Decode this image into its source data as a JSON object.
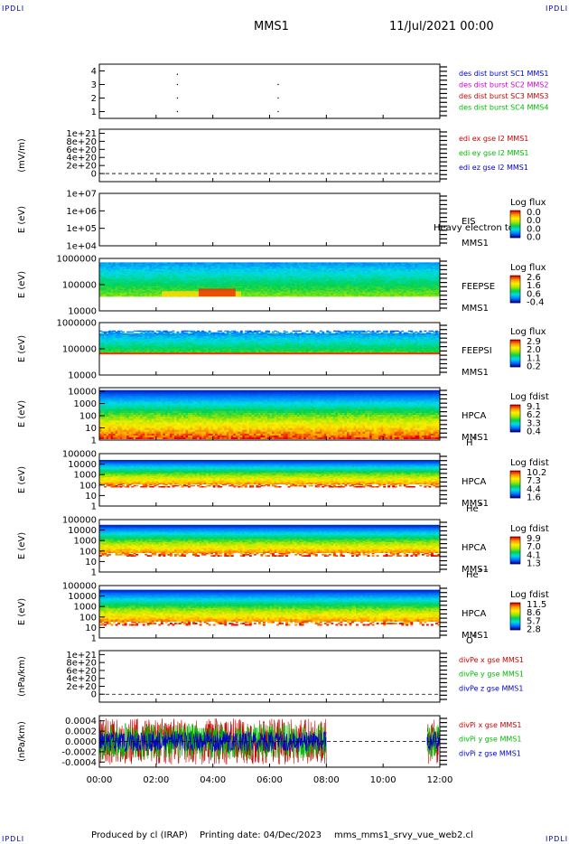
{
  "header": {
    "corner_left_top": "IPDLI",
    "corner_right_top": "IPDLI",
    "corner_left_bottom": "IPDLI",
    "corner_right_bottom": "IPDLI",
    "spacecraft": "MMS1",
    "datetime": "11/Jul/2021 00:00"
  },
  "footer": {
    "produced_by": "Produced by cl (IRAP)",
    "printing_date": "Printing date: 04/Dec/2023",
    "script_name": "mms_mms1_srvy_vue_web2.cl"
  },
  "x_axis": {
    "range_hours": [
      0,
      12
    ],
    "ticks": [
      {
        "hour": 0,
        "label": "00:00"
      },
      {
        "hour": 2,
        "label": "02:00"
      },
      {
        "hour": 4,
        "label": "04:00"
      },
      {
        "hour": 6,
        "label": "06:00"
      },
      {
        "hour": 8,
        "label": "08:00"
      },
      {
        "hour": 10,
        "label": "10:00"
      },
      {
        "hour": 12,
        "label": "12:00"
      }
    ]
  },
  "chart_data": [
    {
      "type": "scatter",
      "ylabel": "",
      "ylim": [
        0.5,
        4.5
      ],
      "y_ticks": [
        "1",
        "2",
        "3",
        "4"
      ],
      "y_tick_values": [
        1,
        2,
        3,
        4
      ],
      "legend": [
        {
          "label": "des dist burst SC1 MMS1",
          "color": "#0000cc"
        },
        {
          "label": "des dist burst SC2 MMS2",
          "color": "#cc00cc"
        },
        {
          "label": "des dist burst SC3 MMS3",
          "color": "#cc0000"
        },
        {
          "label": "des dist burst SC4 MMS4",
          "color": "#00bb00"
        }
      ],
      "points": [
        {
          "hour": 2.75,
          "y": 3.75
        },
        {
          "hour": 2.75,
          "y": 3.0
        },
        {
          "hour": 2.75,
          "y": 2.0
        },
        {
          "hour": 2.75,
          "y": 1.0
        },
        {
          "hour": 6.3,
          "y": 3.0
        },
        {
          "hour": 6.3,
          "y": 2.0
        },
        {
          "hour": 6.3,
          "y": 1.0
        }
      ]
    },
    {
      "type": "line",
      "ylabel": "(mV/m)",
      "ylim": [
        -2e+20,
        1.1e+21
      ],
      "y_ticks": [
        "0",
        "2e+20",
        "4e+20",
        "6e+20",
        "8e+20",
        "1e+21"
      ],
      "y_tick_values": [
        0,
        2e+20,
        4e+20,
        6e+20,
        8e+20,
        1e+21
      ],
      "zero_line": true,
      "legend": [
        {
          "label": "edi ex gse l2 MMS1",
          "color": "#cc0000"
        },
        {
          "label": "edi ey gse l2 MMS1",
          "color": "#00bb00"
        },
        {
          "label": "edi ez gse l2 MMS1",
          "color": "#0000cc"
        }
      ]
    },
    {
      "type": "heatmap",
      "ylabel": "E (eV)",
      "log_scale": true,
      "ylim": [
        10000.0,
        10000000.0
      ],
      "y_ticks": [
        "1e+04",
        "1e+05",
        "1e+06",
        "1e+07"
      ],
      "y_tick_exp": [
        4,
        5,
        6,
        7
      ],
      "instrument": [
        "EIS",
        "MMS1"
      ],
      "overlay_text": "Heavy electron to",
      "colorbar_title": "Log flux",
      "colorbar_ticks": [
        "0.0",
        "0.0",
        "0.0",
        "0.0"
      ],
      "data_present": false
    },
    {
      "type": "heatmap",
      "ylabel": "E (eV)",
      "log_scale": true,
      "ylim": [
        10000.0,
        1000000.0
      ],
      "y_ticks": [
        "10000",
        "100000",
        "1000000"
      ],
      "y_tick_exp": [
        4,
        5,
        6
      ],
      "instrument": [
        "FEEPSE",
        "MMS1"
      ],
      "colorbar_title": "Log flux",
      "colorbar_ticks": [
        "2.6",
        "1.6",
        "0.6",
        "-0.4"
      ],
      "data_present": true,
      "data_y_exp": [
        4.55,
        5.85
      ],
      "hot_bands": [
        {
          "hour_start": 2.2,
          "hour_end": 5.0,
          "y_exp": [
            4.55,
            4.75
          ],
          "value": 2.4
        },
        {
          "hour_start": 3.5,
          "hour_end": 4.8,
          "y_exp": [
            4.55,
            4.85
          ],
          "value": 2.6
        }
      ]
    },
    {
      "type": "heatmap",
      "ylabel": "E (eV)",
      "log_scale": true,
      "ylim": [
        10000.0,
        1000000.0
      ],
      "y_ticks": [
        "10000",
        "100000",
        "1000000"
      ],
      "y_tick_exp": [
        4,
        5,
        6
      ],
      "instrument": [
        "FEEPSI",
        "MMS1"
      ],
      "colorbar_title": "Log flux",
      "colorbar_ticks": [
        "2.9",
        "2.0",
        "1.1",
        "0.2"
      ],
      "data_present": true,
      "data_y_exp": [
        4.8,
        5.7
      ]
    },
    {
      "type": "heatmap",
      "ylabel": "E (eV)",
      "log_scale": true,
      "ylim": [
        1,
        20000.0
      ],
      "y_ticks": [
        "1",
        "10",
        "100",
        "1000",
        "10000"
      ],
      "y_tick_exp": [
        0,
        1,
        2,
        3,
        4
      ],
      "instrument": [
        "HPCA",
        "MMS1"
      ],
      "species": "H",
      "species_sup": "+",
      "colorbar_title": "Log fdist",
      "colorbar_ticks": [
        "9.1",
        "6.2",
        "3.3",
        "0.4"
      ],
      "data_present": true,
      "data_y_exp": [
        0.1,
        4.1
      ]
    },
    {
      "type": "heatmap",
      "ylabel": "E (eV)",
      "log_scale": true,
      "ylim": [
        1,
        100000.0
      ],
      "y_ticks": [
        "1",
        "10",
        "100",
        "1000",
        "10000",
        "100000"
      ],
      "y_tick_exp": [
        0,
        1,
        2,
        3,
        4,
        5
      ],
      "instrument": [
        "HPCA",
        "MMS1"
      ],
      "species": "He",
      "species_sup": "+",
      "colorbar_title": "Log fdist",
      "colorbar_ticks": [
        "10.2",
        "7.3",
        "4.4",
        "1.6"
      ],
      "data_present": true,
      "data_y_exp": [
        1.8,
        4.4
      ]
    },
    {
      "type": "heatmap",
      "ylabel": "E (eV)",
      "log_scale": true,
      "ylim": [
        1,
        100000.0
      ],
      "y_ticks": [
        "1",
        "10",
        "100",
        "1000",
        "10000",
        "100000"
      ],
      "y_tick_exp": [
        0,
        1,
        2,
        3,
        4,
        5
      ],
      "instrument": [
        "HPCA",
        "MMS1"
      ],
      "species": "He",
      "species_sup": "++",
      "colorbar_title": "Log fdist",
      "colorbar_ticks": [
        "9.9",
        "7.0",
        "4.1",
        "1.3"
      ],
      "data_present": true,
      "data_y_exp": [
        1.5,
        4.5
      ]
    },
    {
      "type": "heatmap",
      "ylabel": "E (eV)",
      "log_scale": true,
      "ylim": [
        1,
        100000.0
      ],
      "y_ticks": [
        "1",
        "10",
        "100",
        "1000",
        "10000",
        "100000"
      ],
      "y_tick_exp": [
        0,
        1,
        2,
        3,
        4,
        5
      ],
      "instrument": [
        "HPCA",
        "MMS1"
      ],
      "species": "O",
      "species_sup": "+",
      "colorbar_title": "Log fdist",
      "colorbar_ticks": [
        "11.5",
        "8.6",
        "5.7",
        "2.8"
      ],
      "data_present": true,
      "data_y_exp": [
        1.2,
        4.6
      ]
    },
    {
      "type": "line",
      "ylabel": "(nPa/km)",
      "ylim": [
        -2e+20,
        1.1e+21
      ],
      "y_ticks": [
        "0",
        "2e+20",
        "4e+20",
        "6e+20",
        "8e+20",
        "1e+21"
      ],
      "y_tick_values": [
        0,
        2e+20,
        4e+20,
        6e+20,
        8e+20,
        1e+21
      ],
      "zero_line": true,
      "legend": [
        {
          "label": "divPe x gse MMS1",
          "color": "#cc0000"
        },
        {
          "label": "divPe y gse MMS1",
          "color": "#00bb00"
        },
        {
          "label": "divPe z gse MMS1",
          "color": "#0000cc"
        }
      ]
    },
    {
      "type": "line",
      "ylabel": "(nPa/km)",
      "ylim": [
        -0.0005,
        0.0005
      ],
      "y_ticks": [
        "-0.0004",
        "-0.0002",
        "0.0000",
        "0.0002",
        "0.0004"
      ],
      "y_tick_values": [
        -0.0004,
        -0.0002,
        0,
        0.0002,
        0.0004
      ],
      "zero_line": true,
      "legend": [
        {
          "label": "divPi x gse MMS1",
          "color": "#cc0000"
        },
        {
          "label": "divPi y gse MMS1",
          "color": "#00bb00"
        },
        {
          "label": "divPi z gse MMS1",
          "color": "#0000cc"
        }
      ],
      "data_segments_hours": [
        [
          0.0,
          8.0
        ],
        [
          11.55,
          12.0
        ]
      ],
      "series_amplitude": [
        {
          "name": "divPi x gse MMS1",
          "amp": 0.00045
        },
        {
          "name": "divPi y gse MMS1",
          "amp": 0.00035
        },
        {
          "name": "divPi z gse MMS1",
          "amp": 0.0002
        }
      ]
    }
  ]
}
